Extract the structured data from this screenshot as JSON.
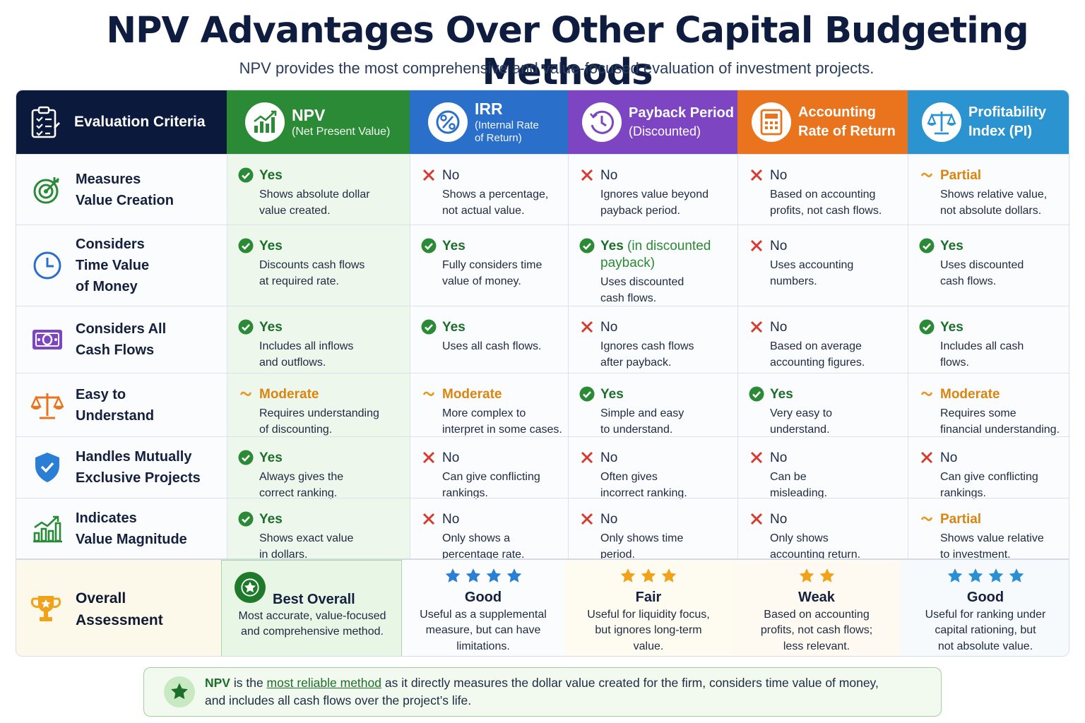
{
  "title": "NPV Advantages Over Other Capital Budgeting Methods",
  "subtitle": "NPV provides the most comprehensive and value-focused evaluation of investment projects.",
  "colors": {
    "criteria": "#0b1a3c",
    "npv": "#2a8a35",
    "irr": "#2a6fc9",
    "payback": "#7e45c2",
    "arr": "#ea731d",
    "pi": "#2b93cf",
    "yes": "#2a8a35",
    "no": "#d93a2f",
    "moderate": "#e8961c"
  },
  "headers": {
    "criteria": "Evaluation Criteria",
    "npv": {
      "name": "NPV",
      "sub": "(Net Present Value)"
    },
    "irr": {
      "name": "IRR",
      "sub1": "(Internal Rate",
      "sub2": "of Return)"
    },
    "payback": {
      "line1": "Payback Period",
      "line2": "(Discounted)"
    },
    "arr": {
      "line1": "Accounting",
      "line2": "Rate of Return"
    },
    "pi": {
      "line1": "Profitability",
      "line2": "Index (PI)"
    }
  },
  "rows": [
    {
      "icon": "target-icon",
      "label1": "Measures",
      "label2": "Value Creation",
      "label3": "",
      "cells": [
        {
          "mark": "yes",
          "verdict": "Yes",
          "note": "",
          "d1": "Shows absolute dollar",
          "d2": "value created."
        },
        {
          "mark": "no",
          "verdict": "No",
          "note": "",
          "d1": "Shows a percentage,",
          "d2": "not actual value."
        },
        {
          "mark": "no",
          "verdict": "No",
          "note": "",
          "d1": "Ignores value beyond",
          "d2": "payback period."
        },
        {
          "mark": "no",
          "verdict": "No",
          "note": "",
          "d1": "Based on accounting",
          "d2": "profits, not cash flows."
        },
        {
          "mark": "mod",
          "verdict": "Partial",
          "note": "",
          "d1": "Shows relative value,",
          "d2": "not absolute dollars."
        }
      ]
    },
    {
      "icon": "clock-icon",
      "label1": "Considers",
      "label2": "Time Value",
      "label3": "of Money",
      "cells": [
        {
          "mark": "yes",
          "verdict": "Yes",
          "note": "",
          "d1": "Discounts cash flows",
          "d2": "at required rate."
        },
        {
          "mark": "yes",
          "verdict": "Yes",
          "note": "",
          "d1": "Fully considers time",
          "d2": "value of money."
        },
        {
          "mark": "yes",
          "verdict": "Yes",
          "note": " (in discounted payback)",
          "d1": "Uses discounted",
          "d2": "cash flows."
        },
        {
          "mark": "no",
          "verdict": "No",
          "note": "",
          "d1": "Uses accounting",
          "d2": "numbers."
        },
        {
          "mark": "yes",
          "verdict": "Yes",
          "note": "",
          "d1": "Uses discounted",
          "d2": "cash flows."
        }
      ]
    },
    {
      "icon": "money-bill-icon",
      "label1": "Considers All",
      "label2": "Cash Flows",
      "label3": "",
      "cells": [
        {
          "mark": "yes",
          "verdict": "Yes",
          "note": "",
          "d1": "Includes all inflows",
          "d2": "and outflows."
        },
        {
          "mark": "yes",
          "verdict": "Yes",
          "note": "",
          "d1": "Uses all cash flows.",
          "d2": ""
        },
        {
          "mark": "no",
          "verdict": "No",
          "note": "",
          "d1": "Ignores cash flows",
          "d2": "after payback."
        },
        {
          "mark": "no",
          "verdict": "No",
          "note": "",
          "d1": "Based on average",
          "d2": "accounting figures."
        },
        {
          "mark": "yes",
          "verdict": "Yes",
          "note": "",
          "d1": "Includes all cash",
          "d2": "flows."
        }
      ]
    },
    {
      "icon": "scales-icon",
      "label1": "Easy to",
      "label2": "Understand",
      "label3": "",
      "cells": [
        {
          "mark": "mod",
          "verdict": "Moderate",
          "note": "",
          "d1": "Requires understanding",
          "d2": "of discounting."
        },
        {
          "mark": "mod",
          "verdict": "Moderate",
          "note": "",
          "d1": "More complex to",
          "d2": "interpret in some cases."
        },
        {
          "mark": "yes",
          "verdict": "Yes",
          "note": "",
          "d1": "Simple and easy",
          "d2": "to understand."
        },
        {
          "mark": "yes",
          "verdict": "Yes",
          "note": "",
          "d1": "Very easy to",
          "d2": "understand."
        },
        {
          "mark": "mod",
          "verdict": "Moderate",
          "note": "",
          "d1": "Requires some",
          "d2": "financial understanding."
        }
      ]
    },
    {
      "icon": "shield-check-icon",
      "label1": "Handles Mutually",
      "label2": "Exclusive Projects",
      "label3": "",
      "cells": [
        {
          "mark": "yes",
          "verdict": "Yes",
          "note": "",
          "d1": "Always gives the",
          "d2": "correct ranking."
        },
        {
          "mark": "no",
          "verdict": "No",
          "note": "",
          "d1": "Can give conflicting",
          "d2": "rankings."
        },
        {
          "mark": "no",
          "verdict": "No",
          "note": "",
          "d1": "Often gives",
          "d2": "incorrect ranking."
        },
        {
          "mark": "no",
          "verdict": "No",
          "note": "",
          "d1": "Can be",
          "d2": "misleading."
        },
        {
          "mark": "no",
          "verdict": "No",
          "note": "",
          "d1": "Can give conflicting",
          "d2": "rankings."
        }
      ]
    },
    {
      "icon": "bar-chart-icon",
      "label1": "Indicates",
      "label2": "Value Magnitude",
      "label3": "",
      "cells": [
        {
          "mark": "yes",
          "verdict": "Yes",
          "note": "",
          "d1": "Shows exact value",
          "d2": "in dollars."
        },
        {
          "mark": "no",
          "verdict": "No",
          "note": "",
          "d1": "Only shows a",
          "d2": "percentage rate."
        },
        {
          "mark": "no",
          "verdict": "No",
          "note": "",
          "d1": "Only shows time",
          "d2": "period."
        },
        {
          "mark": "no",
          "verdict": "No",
          "note": "",
          "d1": "Only shows",
          "d2": "accounting return."
        },
        {
          "mark": "mod",
          "verdict": "Partial",
          "note": "",
          "d1": "Shows value relative",
          "d2": "to investment."
        }
      ]
    }
  ],
  "assessment": {
    "label1": "Overall",
    "label2": "Assessment",
    "npv": {
      "rating": "Best Overall",
      "d1": "Most accurate, value-focused",
      "d2": "and comprehensive method."
    },
    "irr": {
      "stars": 4,
      "star_color": "#2a7fd4",
      "rating": "Good",
      "d1": "Useful as a supplemental",
      "d2": "measure, but can have",
      "d3": "limitations."
    },
    "payback": {
      "stars": 3,
      "star_color": "#f0a21a",
      "rating": "Fair",
      "d1": "Useful for liquidity focus,",
      "d2": "but ignores long-term",
      "d3": "value."
    },
    "arr": {
      "stars": 2,
      "star_color": "#f0a21a",
      "rating": "Weak",
      "d1": "Based on accounting",
      "d2": "profits, not cash flows;",
      "d3": "less relevant."
    },
    "pi": {
      "stars": 4,
      "star_color": "#2a8fd4",
      "rating": "Good",
      "d1": "Useful for ranking under",
      "d2": "capital rationing, but",
      "d3": "not absolute value."
    }
  },
  "footer": {
    "bold": "NPV",
    "t1": " is the ",
    "link": "most reliable method",
    "t2": " as it directly measures the dollar value created for the firm, considers time value of money,",
    "t3": "and includes all cash flows over the project’s life."
  }
}
